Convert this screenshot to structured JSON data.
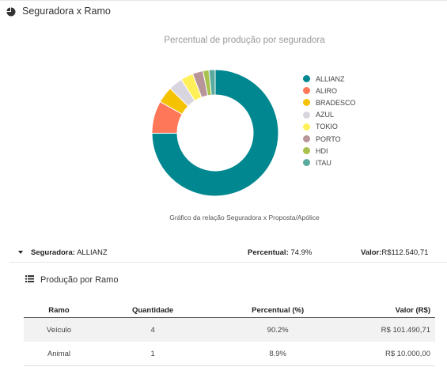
{
  "section": {
    "title": "Seguradora x Ramo",
    "icon": "pie-chart-icon"
  },
  "chart_data": {
    "type": "pie",
    "title": "Percentual de produção por seguradora",
    "caption": "Gráfico da relação Seguradora x Proposta/Apólice",
    "legend_position": "right",
    "categories": [
      "ALLIANZ",
      "ALIRO",
      "BRADESCO",
      "AZUL",
      "TOKIO",
      "PORTO",
      "HDI",
      "ITAU"
    ],
    "values": [
      74.9,
      8.3,
      4.2,
      3.6,
      3.2,
      2.7,
      1.5,
      1.6
    ],
    "colors": [
      "#00878f",
      "#ff7759",
      "#f5c200",
      "#d9d5df",
      "#fff05a",
      "#b89599",
      "#a9c14d",
      "#5aab9d"
    ]
  },
  "summary": {
    "seguradora_label": "Seguradora:",
    "seguradora_value": "ALLIANZ",
    "percentual_label": "Percentual:",
    "percentual_value": "74.9%",
    "valor_label": "Valor:",
    "valor_value": "R$112.540,71"
  },
  "producao": {
    "title": "Produção por Ramo",
    "icon": "list-icon",
    "columns": [
      "Ramo",
      "Quantidade",
      "Percentual (%)",
      "Valor (R$)"
    ],
    "rows": [
      [
        "Veículo",
        "4",
        "90.2%",
        "R$ 101.490,71"
      ],
      [
        "Animal",
        "1",
        "8.9%",
        "R$ 10.000,00"
      ]
    ]
  }
}
